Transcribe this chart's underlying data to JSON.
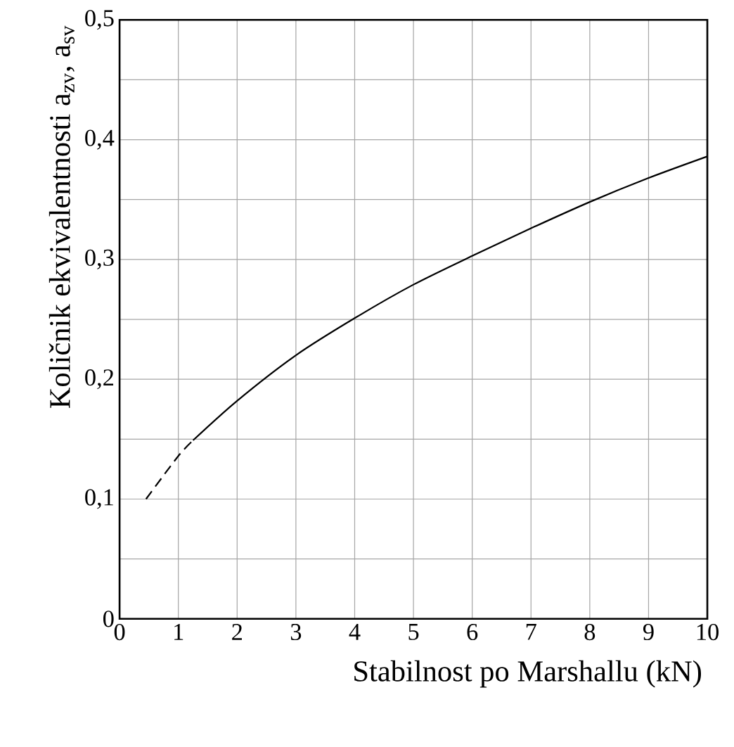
{
  "chart_data": {
    "type": "line",
    "xlabel": "Stabilnost po Marshallu (kN)",
    "ylabel": "Količnik ekvivalentnosti a$_{zv}$, a$_{sv}$",
    "xlim": [
      0,
      10
    ],
    "ylim": [
      0,
      0.5
    ],
    "xticks": [
      0,
      1,
      2,
      3,
      4,
      5,
      6,
      7,
      8,
      9,
      10
    ],
    "yticks": [
      {
        "value": 0,
        "label": "0"
      },
      {
        "value": 0.05,
        "label": null
      },
      {
        "value": 0.1,
        "label": "0,1"
      },
      {
        "value": 0.15,
        "label": null
      },
      {
        "value": 0.2,
        "label": "0,2"
      },
      {
        "value": 0.25,
        "label": null
      },
      {
        "value": 0.3,
        "label": "0,3"
      },
      {
        "value": 0.35,
        "label": null
      },
      {
        "value": 0.4,
        "label": "0,4"
      },
      {
        "value": 0.45,
        "label": null
      },
      {
        "value": 0.5,
        "label": "0,5"
      }
    ],
    "grid": true,
    "series": [
      {
        "color": "#000000",
        "line_style": "dashed",
        "x": [
          0.45,
          1,
          1.25
        ],
        "values": [
          0.1,
          0.136,
          0.149
        ]
      },
      {
        "color": "#000000",
        "line_style": "solid",
        "x": [
          1.25,
          2,
          3,
          4,
          5,
          6,
          7,
          8,
          9,
          10
        ],
        "values": [
          0.149,
          0.182,
          0.22,
          0.251,
          0.279,
          0.303,
          0.326,
          0.348,
          0.368,
          0.386
        ]
      }
    ]
  }
}
